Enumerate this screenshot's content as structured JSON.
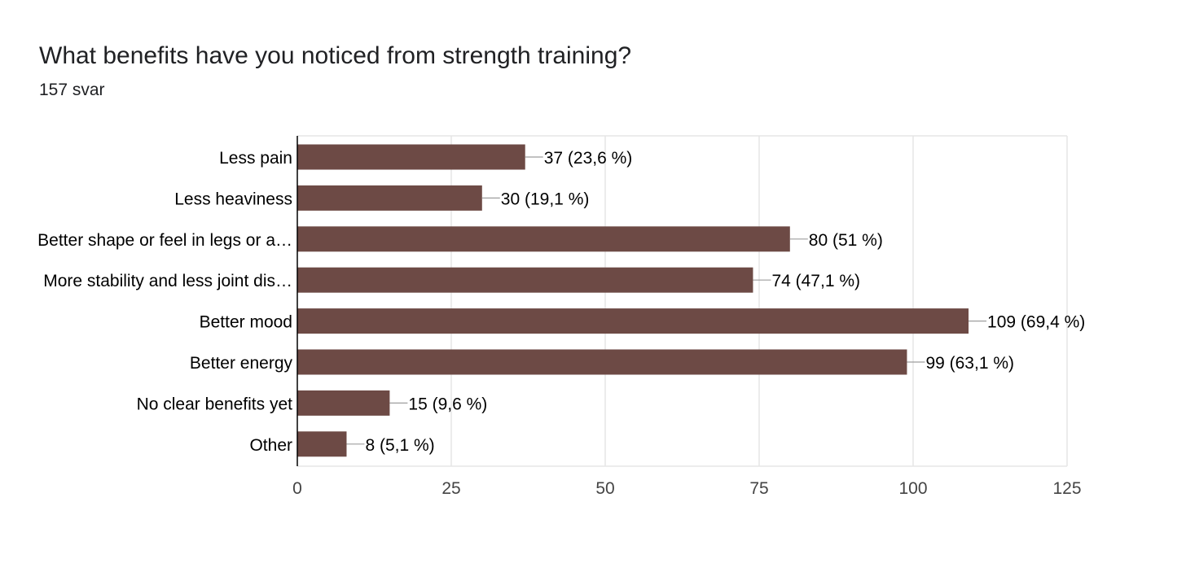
{
  "question": {
    "title": "What benefits have you noticed from strength training?",
    "responses": "157 svar"
  },
  "colors": {
    "bar": "#6D4A45",
    "grid": "#E5E5E5",
    "axis": "#000000",
    "leader": "#9E9E9E",
    "text": "#202124"
  },
  "chart_data": {
    "type": "bar",
    "orientation": "horizontal",
    "categories": [
      "Less pain",
      "Less heaviness",
      "Better shape or feel in legs or a…",
      "More stability and less joint dis…",
      "Better mood",
      "Better energy",
      "No clear benefits yet",
      "Other"
    ],
    "values": [
      37,
      30,
      80,
      74,
      109,
      99,
      15,
      8
    ],
    "data_labels": [
      "37 (23,6 %)",
      "30 (19,1 %)",
      "80 (51 %)",
      "74 (47,1 %)",
      "109 (69,4 %)",
      "99 (63,1 %)",
      "15 (9,6 %)",
      "8 (5,1 %)"
    ],
    "xlim": [
      0,
      125
    ],
    "xticks": [
      0,
      25,
      50,
      75,
      100,
      125
    ],
    "grid": true,
    "legend": "none"
  }
}
